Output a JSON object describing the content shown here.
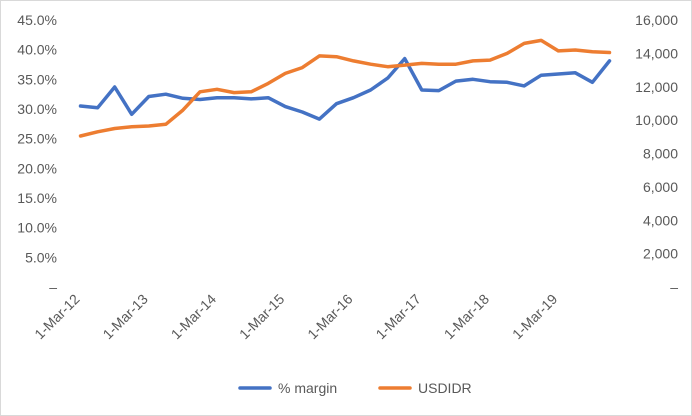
{
  "chart_data": {
    "type": "line",
    "title": "",
    "categories": [
      "1-Mar-12",
      "",
      "",
      "",
      "1-Mar-13",
      "",
      "",
      "",
      "1-Mar-14",
      "",
      "",
      "",
      "1-Mar-15",
      "",
      "",
      "",
      "1-Mar-16",
      "",
      "",
      "",
      "1-Mar-17",
      "",
      "",
      "",
      "1-Mar-18",
      "",
      "",
      "",
      "1-Mar-19",
      "",
      "",
      ""
    ],
    "x_tick_labels": [
      "1-Mar-12",
      "1-Mar-13",
      "1-Mar-14",
      "1-Mar-15",
      "1-Mar-16",
      "1-Mar-17",
      "1-Mar-18",
      "1-Mar-19"
    ],
    "y_left": {
      "tick_labels": [
        "–",
        "5.0%",
        "10.0%",
        "15.0%",
        "20.0%",
        "25.0%",
        "30.0%",
        "35.0%",
        "40.0%",
        "45.0%"
      ],
      "ylim": [
        0,
        0.45
      ]
    },
    "y_right": {
      "tick_labels": [
        "–",
        "2,000",
        "4,000",
        "6,000",
        "8,000",
        "10,000",
        "12,000",
        "14,000",
        "16,000"
      ],
      "ylim": [
        0,
        16000
      ]
    },
    "series": [
      {
        "name": "% margin",
        "axis": "left",
        "color": "#4472c4",
        "values": [
          0.305,
          0.302,
          0.337,
          0.291,
          0.321,
          0.325,
          0.318,
          0.316,
          0.319,
          0.319,
          0.317,
          0.319,
          0.304,
          0.295,
          0.283,
          0.309,
          0.319,
          0.332,
          0.352,
          0.385,
          0.332,
          0.331,
          0.347,
          0.35,
          0.346,
          0.345,
          0.339,
          0.357,
          0.359,
          0.361,
          0.345,
          0.381
        ]
      },
      {
        "name": "USDIDR",
        "axis": "right",
        "color": "#ed7d31",
        "values": [
          9050,
          9300,
          9500,
          9600,
          9650,
          9750,
          10600,
          11700,
          11850,
          11650,
          11700,
          12200,
          12800,
          13150,
          13850,
          13800,
          13550,
          13350,
          13200,
          13300,
          13400,
          13350,
          13350,
          13550,
          13600,
          14000,
          14600,
          14780,
          14150,
          14200,
          14100,
          14050
        ]
      }
    ],
    "legend": {
      "position": "bottom",
      "items": [
        "% margin",
        "USDIDR"
      ]
    },
    "grid": false
  }
}
